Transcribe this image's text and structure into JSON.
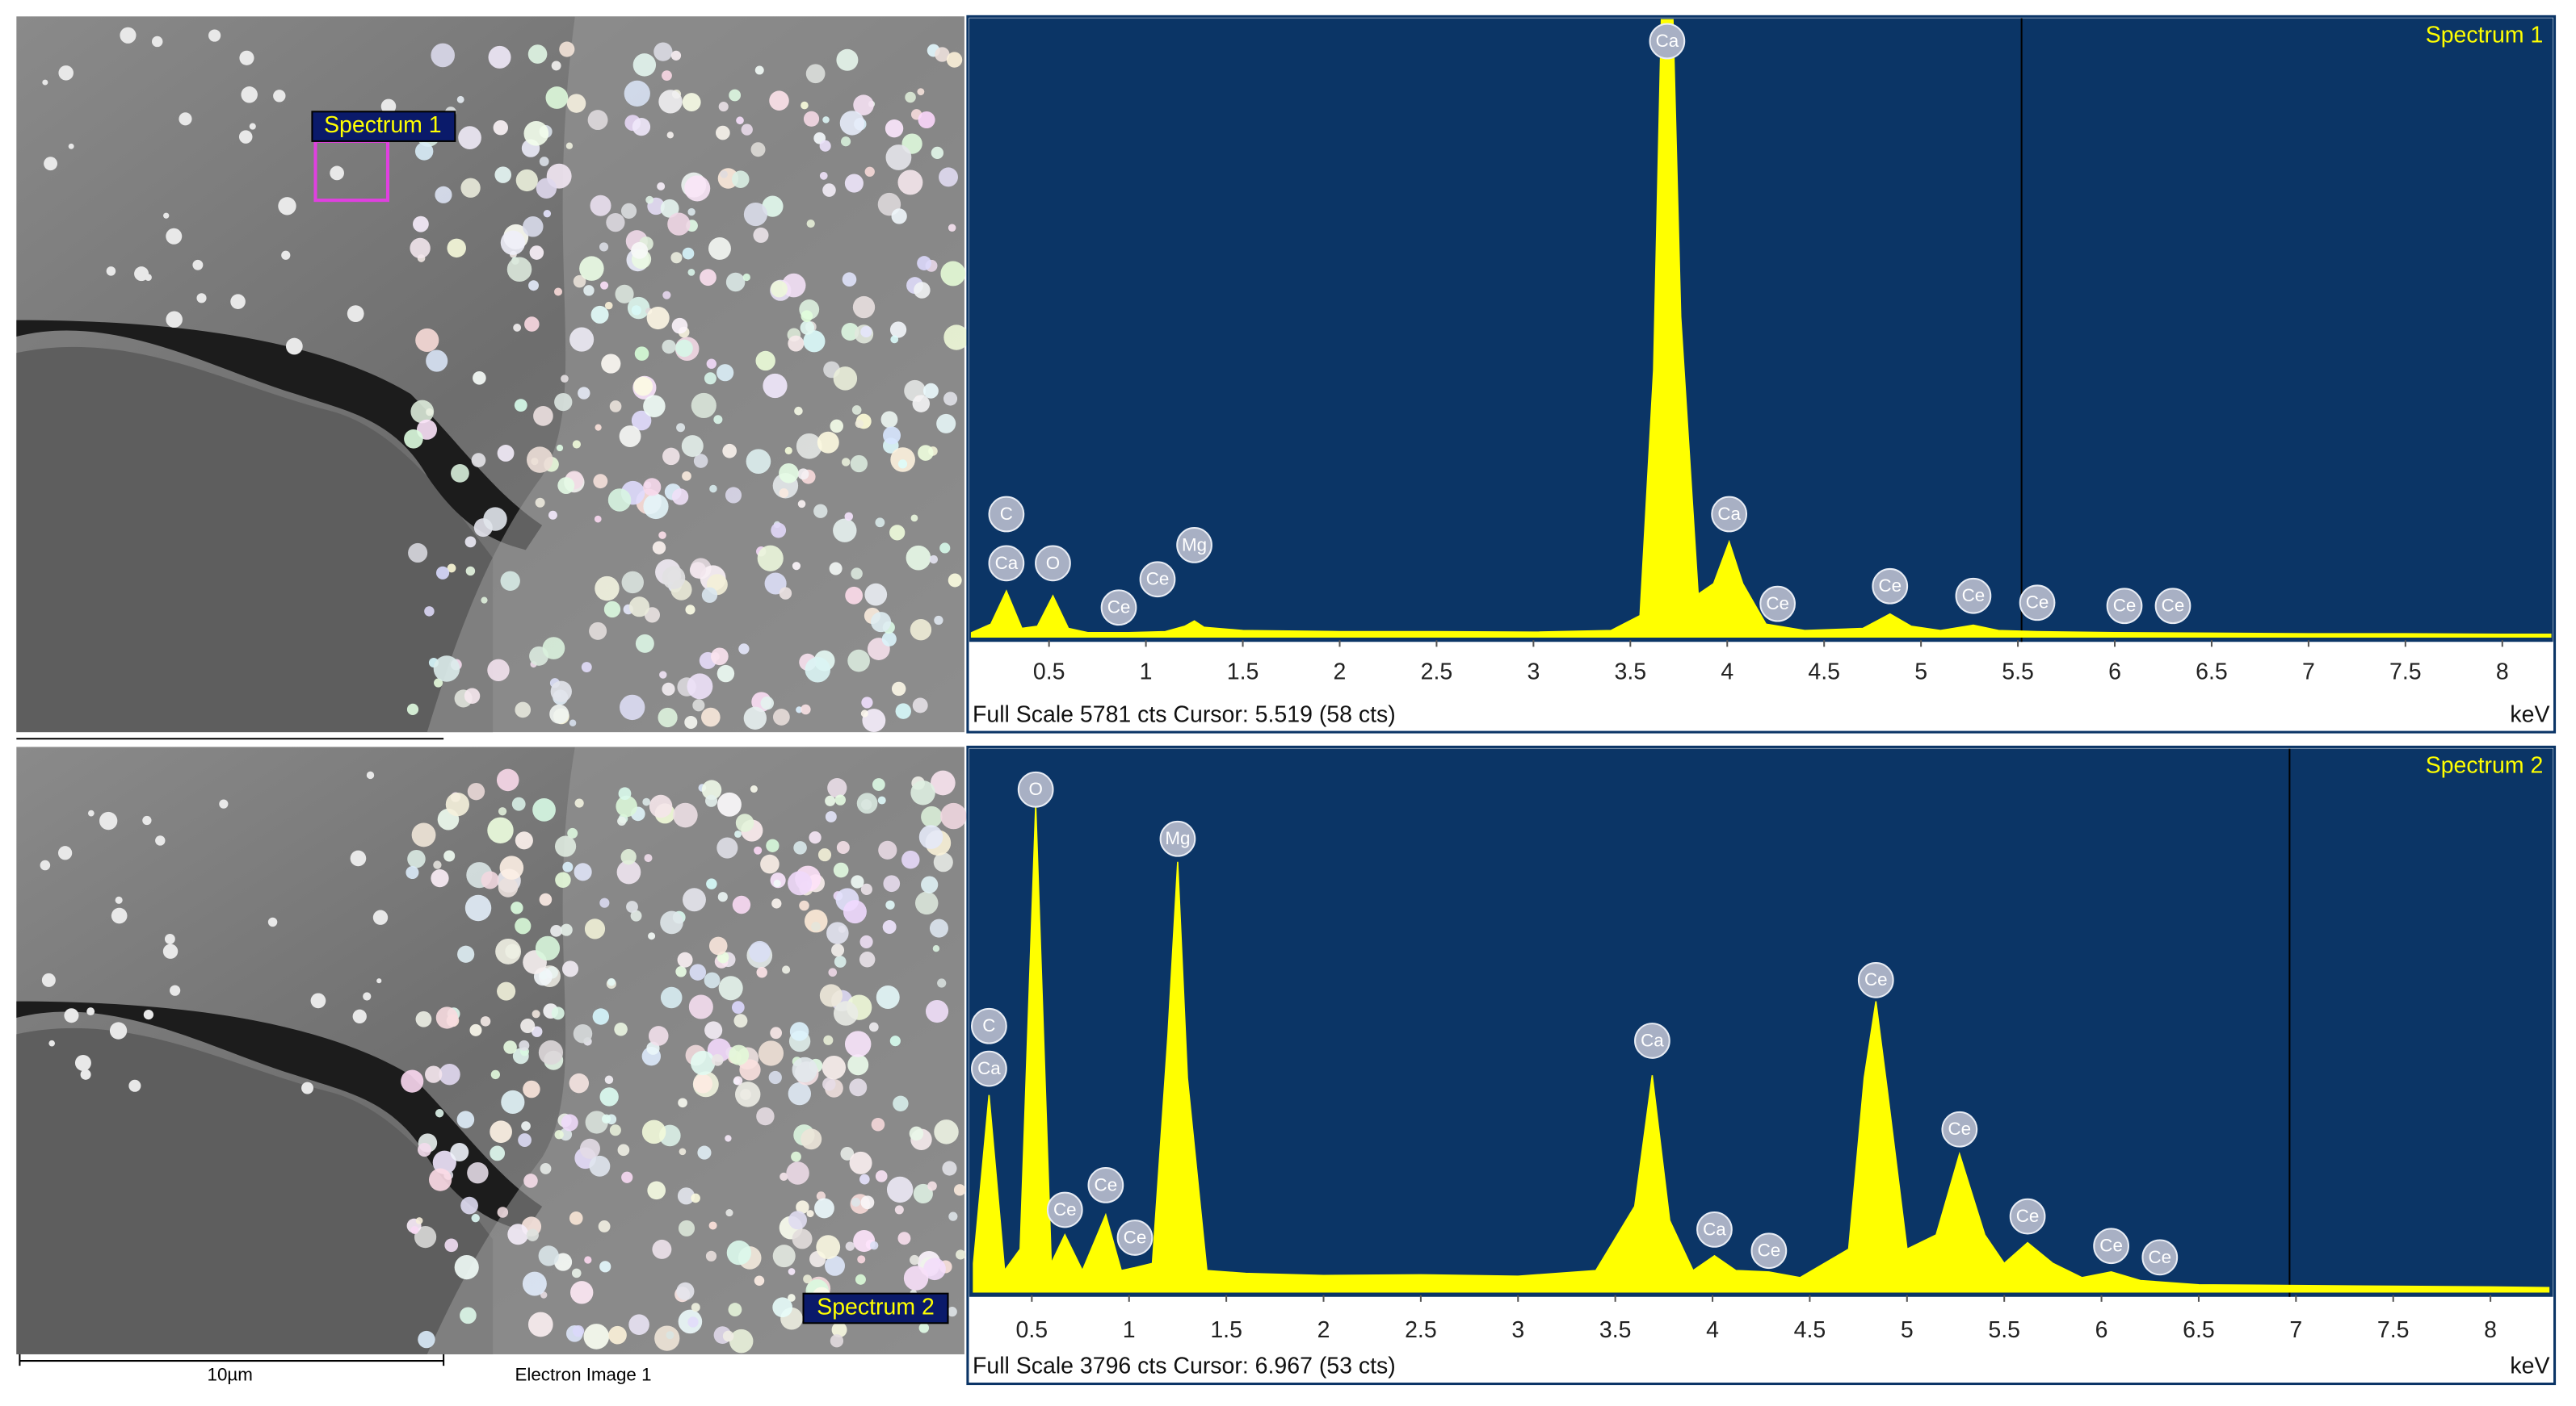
{
  "chart_data": [
    {
      "type": "area",
      "title": "Spectrum 1",
      "color": "#ffff00",
      "x": [
        0.1,
        0.2,
        0.28,
        0.36,
        0.44,
        0.52,
        0.6,
        0.7,
        0.9,
        1.1,
        1.2,
        1.25,
        1.3,
        1.5,
        2.0,
        2.5,
        3.0,
        3.4,
        3.55,
        3.62,
        3.66,
        3.69,
        3.72,
        3.76,
        3.85,
        3.93,
        4.01,
        4.08,
        4.2,
        4.4,
        4.7,
        4.84,
        4.95,
        5.1,
        5.27,
        5.4,
        5.6,
        6.0,
        6.5,
        7.0,
        7.5,
        8.0,
        8.25
      ],
      "values": [
        40,
        120,
        430,
        80,
        100,
        385,
        80,
        40,
        40,
        50,
        100,
        150,
        90,
        60,
        50,
        50,
        45,
        60,
        200,
        2500,
        5781,
        5781,
        5781,
        3000,
        400,
        500,
        890,
        500,
        120,
        60,
        80,
        215,
        100,
        60,
        110,
        60,
        50,
        40,
        35,
        30,
        30,
        25,
        25
      ],
      "xlim": [
        0.08,
        8.27
      ],
      "ylim": [
        0,
        5781
      ],
      "xticks": [
        0.5,
        1,
        1.5,
        2,
        2.5,
        3,
        3.5,
        4,
        4.5,
        5,
        5.5,
        6,
        6.5,
        7,
        7.5,
        8
      ],
      "x_unit": "keV",
      "footer": "Full Scale 5781 cts Cursor: 5.519  (58 cts)",
      "cursor": 5.519,
      "peak_labels": [
        {
          "text": "C",
          "x": 0.28,
          "y": 1150
        },
        {
          "text": "Ca",
          "x": 0.28,
          "y": 690
        },
        {
          "text": "O",
          "x": 0.52,
          "y": 690
        },
        {
          "text": "Ce",
          "x": 0.86,
          "y": 275
        },
        {
          "text": "Ce",
          "x": 1.06,
          "y": 540
        },
        {
          "text": "Mg",
          "x": 1.25,
          "y": 860
        },
        {
          "text": "Ca",
          "x": 3.69,
          "y": 5580
        },
        {
          "text": "Ca",
          "x": 4.01,
          "y": 1150
        },
        {
          "text": "Ce",
          "x": 4.26,
          "y": 310
        },
        {
          "text": "Ce",
          "x": 4.84,
          "y": 475
        },
        {
          "text": "Ce",
          "x": 5.27,
          "y": 385
        },
        {
          "text": "Ce",
          "x": 5.6,
          "y": 320
        },
        {
          "text": "Ce",
          "x": 6.05,
          "y": 290
        },
        {
          "text": "Ce",
          "x": 6.3,
          "y": 290
        }
      ]
    },
    {
      "type": "area",
      "title": "Spectrum 2",
      "color": "#ffff00",
      "x": [
        0.2,
        0.28,
        0.36,
        0.44,
        0.52,
        0.6,
        0.67,
        0.76,
        0.88,
        0.96,
        1.03,
        1.12,
        1.2,
        1.25,
        1.3,
        1.4,
        1.6,
        2.0,
        2.5,
        3.0,
        3.4,
        3.6,
        3.69,
        3.78,
        3.9,
        4.01,
        4.12,
        4.29,
        4.45,
        4.7,
        4.78,
        4.84,
        4.9,
        5.0,
        5.15,
        5.27,
        5.4,
        5.5,
        5.62,
        5.75,
        5.9,
        6.05,
        6.2,
        6.3,
        6.5,
        7.0,
        7.5,
        8.0,
        8.3
      ],
      "values": [
        200,
        1380,
        150,
        300,
        3416,
        200,
        400,
        150,
        540,
        150,
        170,
        200,
        1800,
        3014,
        1500,
        150,
        130,
        115,
        120,
        110,
        150,
        600,
        1518,
        500,
        150,
        253,
        150,
        140,
        100,
        300,
        1500,
        2036,
        1400,
        300,
        400,
        966,
        400,
        200,
        345,
        200,
        100,
        140,
        80,
        70,
        50,
        45,
        40,
        35,
        30
      ],
      "xlim": [
        0.17,
        8.33
      ],
      "ylim": [
        0,
        3796
      ],
      "xticks": [
        0.5,
        1,
        1.5,
        2,
        2.5,
        3,
        3.5,
        4,
        4.5,
        5,
        5.5,
        6,
        6.5,
        7,
        7.5,
        8
      ],
      "x_unit": "keV",
      "footer": "Full Scale 3796 cts Cursor: 6.967  (53 cts)",
      "cursor": 6.967,
      "peak_labels": [
        {
          "text": "C",
          "x": 0.28,
          "y": 1863
        },
        {
          "text": "Ca",
          "x": 0.28,
          "y": 1564
        },
        {
          "text": "O",
          "x": 0.52,
          "y": 3520
        },
        {
          "text": "Ce",
          "x": 0.67,
          "y": 575
        },
        {
          "text": "Ce",
          "x": 0.88,
          "y": 748
        },
        {
          "text": "Ce",
          "x": 1.03,
          "y": 380
        },
        {
          "text": "Mg",
          "x": 1.25,
          "y": 3175
        },
        {
          "text": "Ca",
          "x": 3.69,
          "y": 1760
        },
        {
          "text": "Ca",
          "x": 4.01,
          "y": 437
        },
        {
          "text": "Ce",
          "x": 4.29,
          "y": 288
        },
        {
          "text": "Ce",
          "x": 4.84,
          "y": 2185
        },
        {
          "text": "Ce",
          "x": 5.27,
          "y": 1139
        },
        {
          "text": "Ce",
          "x": 5.62,
          "y": 529
        },
        {
          "text": "Ce",
          "x": 6.05,
          "y": 322
        },
        {
          "text": "Ce",
          "x": 6.3,
          "y": 242
        }
      ]
    }
  ],
  "image_panels": [
    {
      "label": "Spectrum 1"
    },
    {
      "label": "Spectrum 2",
      "scale_bar": "10µm",
      "caption": "Electron Image 1"
    }
  ]
}
